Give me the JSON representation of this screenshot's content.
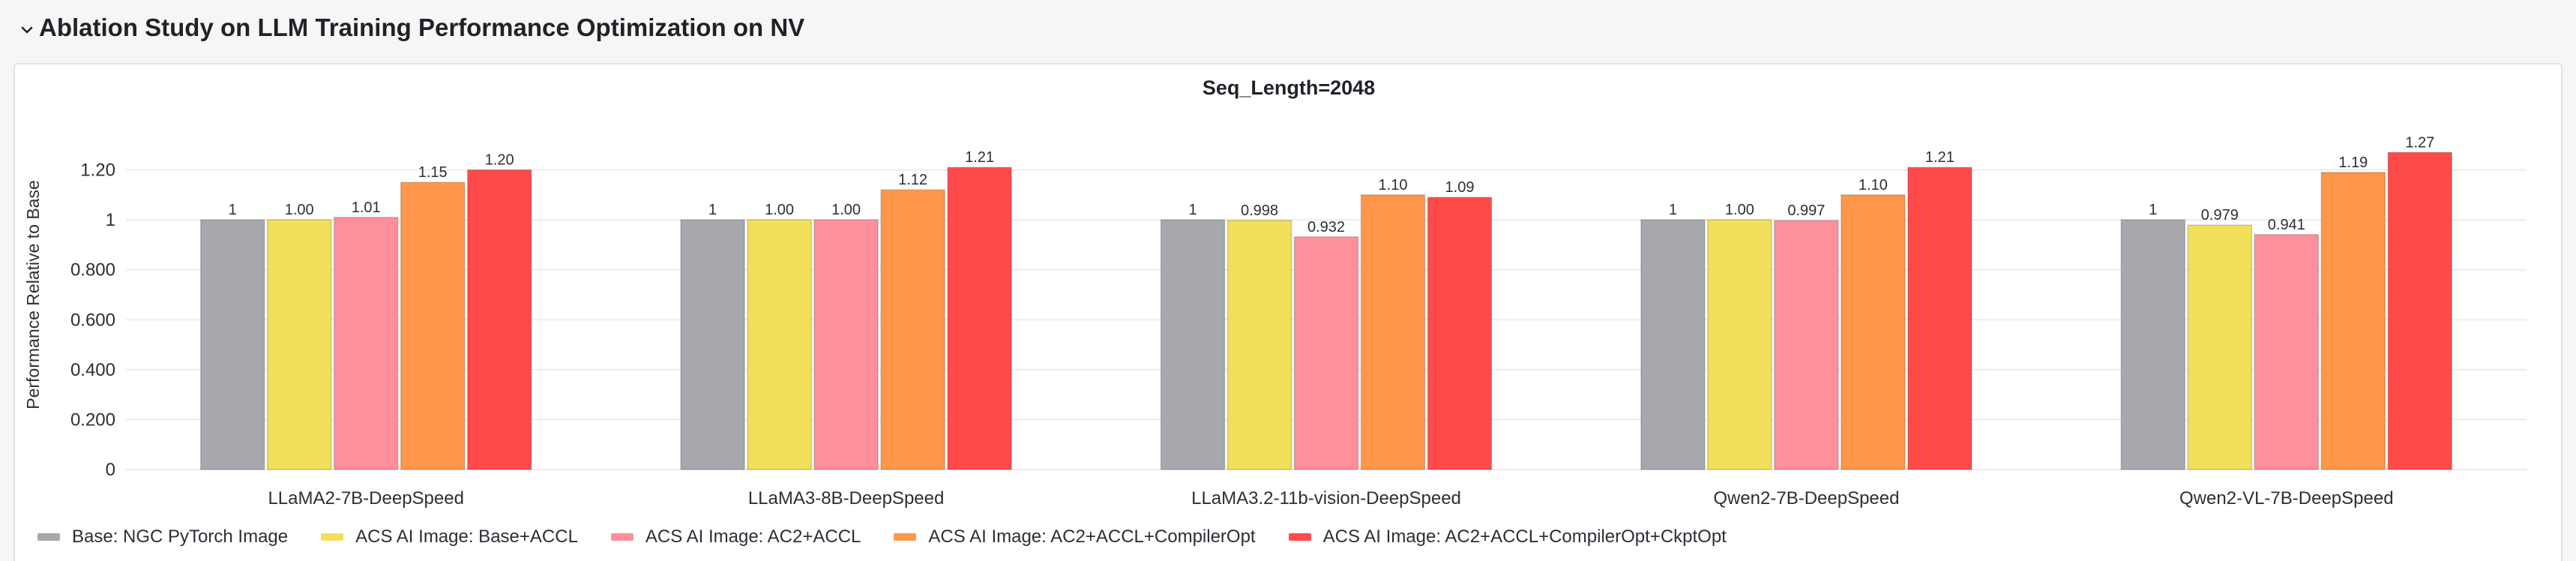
{
  "section": {
    "title": "Ablation Study on LLM Training Performance Optimization on NV"
  },
  "chart_data": {
    "type": "bar",
    "title": "Seq_Length=2048",
    "xlabel": "",
    "ylabel": "Performance Relative to Base",
    "ylim": [
      0,
      1.4
    ],
    "yticks": [
      0,
      0.2,
      0.4,
      0.6,
      0.8,
      1.0,
      1.2
    ],
    "ytick_labels": [
      "0",
      "0.200",
      "0.400",
      "0.600",
      "0.800",
      "1",
      "1.20"
    ],
    "grid": true,
    "legend_position": "bottom-left",
    "categories": [
      "LLaMA2-7B-DeepSpeed",
      "LLaMA3-8B-DeepSpeed",
      "LLaMA3.2-11b-vision-DeepSpeed",
      "Qwen2-7B-DeepSpeed",
      "Qwen2-VL-7B-DeepSpeed"
    ],
    "series": [
      {
        "name": "Base: NGC PyTorch Image",
        "color": "#a6a8ad",
        "values": [
          1,
          1,
          1,
          1,
          1
        ],
        "labels": [
          "1",
          "1",
          "1",
          "1",
          "1"
        ]
      },
      {
        "name": "ACS AI Image: Base+ACCL",
        "color": "#f2e05a",
        "values": [
          1.0,
          1.0,
          0.998,
          1.0,
          0.979
        ],
        "labels": [
          "1.00",
          "1.00",
          "0.998",
          "1.00",
          "0.979"
        ]
      },
      {
        "name": "ACS AI Image: AC2+ACCL",
        "color": "#ff8f9b",
        "values": [
          1.01,
          1.0,
          0.932,
          0.997,
          0.941
        ],
        "labels": [
          "1.01",
          "1.00",
          "0.932",
          "0.997",
          "0.941"
        ]
      },
      {
        "name": "ACS AI Image: AC2+ACCL+CompilerOpt",
        "color": "#ff974a",
        "values": [
          1.15,
          1.12,
          1.1,
          1.1,
          1.19
        ],
        "labels": [
          "1.15",
          "1.12",
          "1.10",
          "1.10",
          "1.19"
        ]
      },
      {
        "name": "ACS AI Image: AC2+ACCL+CompilerOpt+CkptOpt",
        "color": "#ff4a4a",
        "values": [
          1.2,
          1.21,
          1.09,
          1.21,
          1.27
        ],
        "labels": [
          "1.20",
          "1.21",
          "1.09",
          "1.21",
          "1.27"
        ]
      }
    ]
  },
  "icons": {
    "collapse": "chevron-down-icon"
  }
}
